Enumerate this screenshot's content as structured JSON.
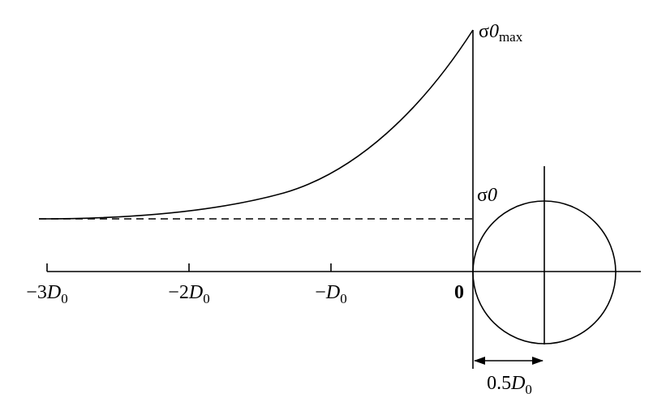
{
  "axis": {
    "ticks": [
      {
        "coef": "−3",
        "symbol": "D",
        "sub": "0"
      },
      {
        "coef": "−2",
        "symbol": "D",
        "sub": "0"
      },
      {
        "coef": "−",
        "symbol": "D",
        "sub": "0"
      },
      {
        "coef": "0"
      }
    ]
  },
  "labels": {
    "sigma_max": {
      "symbol": "σ",
      "sub": "0",
      "suffix": "max"
    },
    "sigma": {
      "symbol": "σ",
      "sub": "0"
    },
    "dimension": {
      "coef": "0.5",
      "symbol": "D",
      "sub": "0"
    }
  }
}
